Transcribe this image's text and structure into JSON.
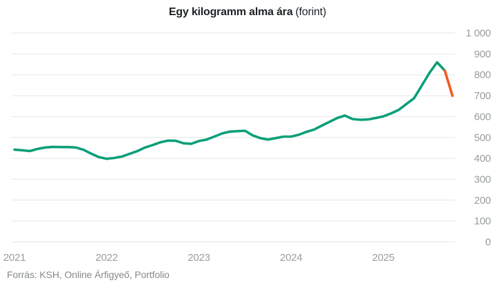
{
  "title": {
    "main": "Egy kilogramm alma ára",
    "suffix": "(forint)"
  },
  "source": "Forrás: KSH, Online Árfigyeő, Portfolio",
  "colors": {
    "background": "#ffffff",
    "title": "#1d2124",
    "source_text": "#85898c",
    "axis_label": "#989da0",
    "grid": "#e2e7e5",
    "line": "#0b9f79",
    "line_highlight": "#f4581c"
  },
  "chart_data": {
    "type": "line",
    "title": "Egy kilogramm alma ára (forint)",
    "xlabel": "",
    "ylabel": "forint",
    "ylim": [
      0,
      1000
    ],
    "grid": "horizontal-only",
    "legend": "none",
    "x_tick_labels": [
      "2021",
      "2022",
      "2023",
      "2024",
      "2025"
    ],
    "y_ticks": [
      0,
      100,
      200,
      300,
      400,
      500,
      600,
      700,
      800,
      900,
      1000
    ],
    "y_tick_labels": [
      "0",
      "100",
      "200",
      "300",
      "400",
      "500",
      "600",
      "700",
      "800",
      "900",
      "1 000"
    ],
    "months": [
      "2021-01",
      "2021-02",
      "2021-03",
      "2021-04",
      "2021-05",
      "2021-06",
      "2021-07",
      "2021-08",
      "2021-09",
      "2021-10",
      "2021-11",
      "2021-12",
      "2022-01",
      "2022-02",
      "2022-03",
      "2022-04",
      "2022-05",
      "2022-06",
      "2022-07",
      "2022-08",
      "2022-09",
      "2022-10",
      "2022-11",
      "2022-12",
      "2023-01",
      "2023-02",
      "2023-03",
      "2023-04",
      "2023-05",
      "2023-06",
      "2023-07",
      "2023-08",
      "2023-09",
      "2023-10",
      "2023-11",
      "2023-12",
      "2024-01",
      "2024-02",
      "2024-03",
      "2024-04",
      "2024-05",
      "2024-06",
      "2024-07",
      "2024-08",
      "2024-09",
      "2024-10",
      "2024-11",
      "2024-12",
      "2025-01",
      "2025-02",
      "2025-03",
      "2025-04",
      "2025-05",
      "2025-06",
      "2025-07",
      "2025-08",
      "2025-09",
      "2025-10"
    ],
    "series": [
      {
        "name": "Egy kilogramm alma ára (forint)",
        "values": [
          442,
          439,
          435,
          445,
          452,
          455,
          454,
          454,
          452,
          441,
          422,
          406,
          398,
          402,
          409,
          422,
          435,
          452,
          464,
          477,
          485,
          484,
          472,
          470,
          483,
          490,
          504,
          519,
          528,
          530,
          532,
          510,
          497,
          490,
          497,
          504,
          504,
          513,
          527,
          538,
          557,
          575,
          593,
          605,
          588,
          585,
          586,
          593,
          601,
          615,
          632,
          660,
          688,
          748,
          809,
          860,
          820,
          700
        ]
      }
    ],
    "highlight_segment": {
      "description": "final month-over-month segment drawn in orange",
      "from_index": 56,
      "to_index": 57
    }
  }
}
